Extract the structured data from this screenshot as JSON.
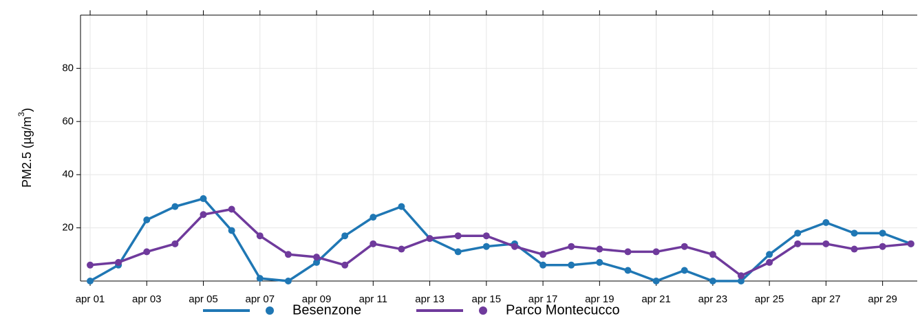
{
  "chart_data": {
    "type": "line",
    "ylabel": "PM2.5 (µg/m",
    "ylabel_superscript": "3",
    "ylabel_close": ")",
    "ylim": [
      0,
      100
    ],
    "yticks": [
      20,
      40,
      60,
      80
    ],
    "x": [
      "apr 01",
      "apr 02",
      "apr 03",
      "apr 04",
      "apr 05",
      "apr 06",
      "apr 07",
      "apr 08",
      "apr 09",
      "apr 10",
      "apr 11",
      "apr 12",
      "apr 13",
      "apr 14",
      "apr 15",
      "apr 16",
      "apr 17",
      "apr 18",
      "apr 19",
      "apr 20",
      "apr 21",
      "apr 22",
      "apr 23",
      "apr 24",
      "apr 25",
      "apr 26",
      "apr 27",
      "apr 28",
      "apr 29",
      "apr 30"
    ],
    "xtick_labels": [
      "apr 01",
      "apr 03",
      "apr 05",
      "apr 07",
      "apr 09",
      "apr 11",
      "apr 13",
      "apr 15",
      "apr 17",
      "apr 19",
      "apr 21",
      "apr 23",
      "apr 25",
      "apr 27",
      "apr 29"
    ],
    "grid": true,
    "legend_position": "bottom",
    "series": [
      {
        "name": "Besenzone",
        "color": "#1f77b4",
        "values": [
          0,
          6,
          23,
          28,
          31,
          19,
          1,
          0,
          7,
          17,
          24,
          28,
          16,
          11,
          13,
          14,
          6,
          6,
          7,
          4,
          0,
          4,
          0,
          0,
          10,
          18,
          22,
          18,
          18,
          14
        ]
      },
      {
        "name": "Parco Montecucco",
        "color": "#6f3a9c",
        "values": [
          6,
          7,
          11,
          14,
          25,
          27,
          17,
          10,
          9,
          6,
          14,
          12,
          16,
          17,
          17,
          13,
          10,
          13,
          12,
          11,
          11,
          13,
          10,
          2,
          7,
          14,
          14,
          12,
          13,
          14
        ]
      }
    ]
  }
}
